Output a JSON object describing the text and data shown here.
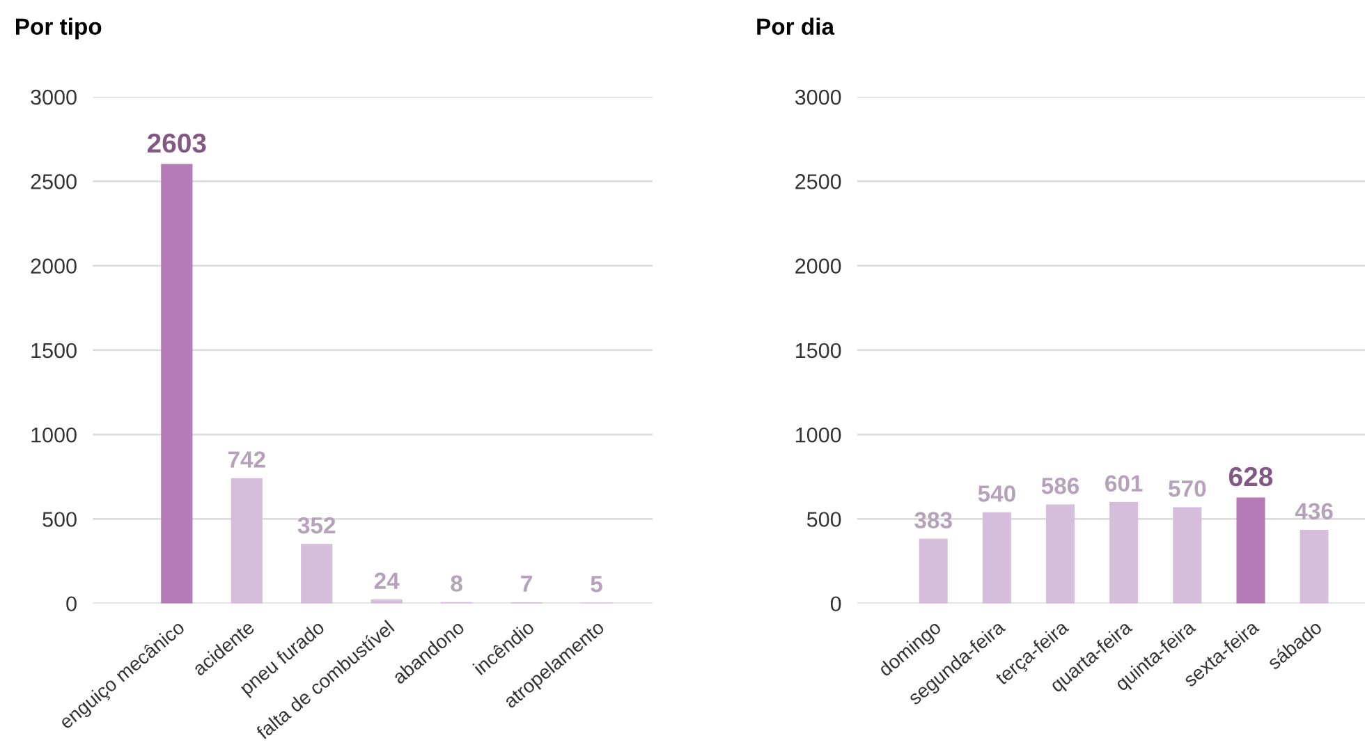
{
  "chart_data": [
    {
      "type": "bar",
      "title": "Por tipo",
      "categories": [
        "enguiço mecânico",
        "acidente",
        "pneu furado",
        "falta de combustível",
        "abandono",
        "incêndio",
        "atropelamento"
      ],
      "values": [
        2603,
        742,
        352,
        24,
        8,
        7,
        5
      ],
      "colors": [
        "#b57ab8",
        "#d6bddc",
        "#d6bddc",
        "#d6bddc",
        "#d6bddc",
        "#d6bddc",
        "#d6bddc"
      ],
      "ylim": [
        0,
        3000
      ],
      "yticks": [
        0,
        500,
        1000,
        1500,
        2000,
        2500,
        3000
      ],
      "grid": "y",
      "data_labels": true
    },
    {
      "type": "bar",
      "title": "Por dia",
      "categories": [
        "domingo",
        "segunda-feira",
        "terça-feira",
        "quarta-feira",
        "quinta-feira",
        "sexta-feira",
        "sábado"
      ],
      "values": [
        383,
        540,
        586,
        601,
        570,
        628,
        436
      ],
      "colors": [
        "#d6bddc",
        "#d6bddc",
        "#d6bddc",
        "#d6bddc",
        "#d6bddc",
        "#b57ab8",
        "#d6bddc"
      ],
      "ylim": [
        0,
        3000
      ],
      "yticks": [
        0,
        500,
        1000,
        1500,
        2000,
        2500,
        3000
      ],
      "grid": "y",
      "data_labels": true
    }
  ]
}
